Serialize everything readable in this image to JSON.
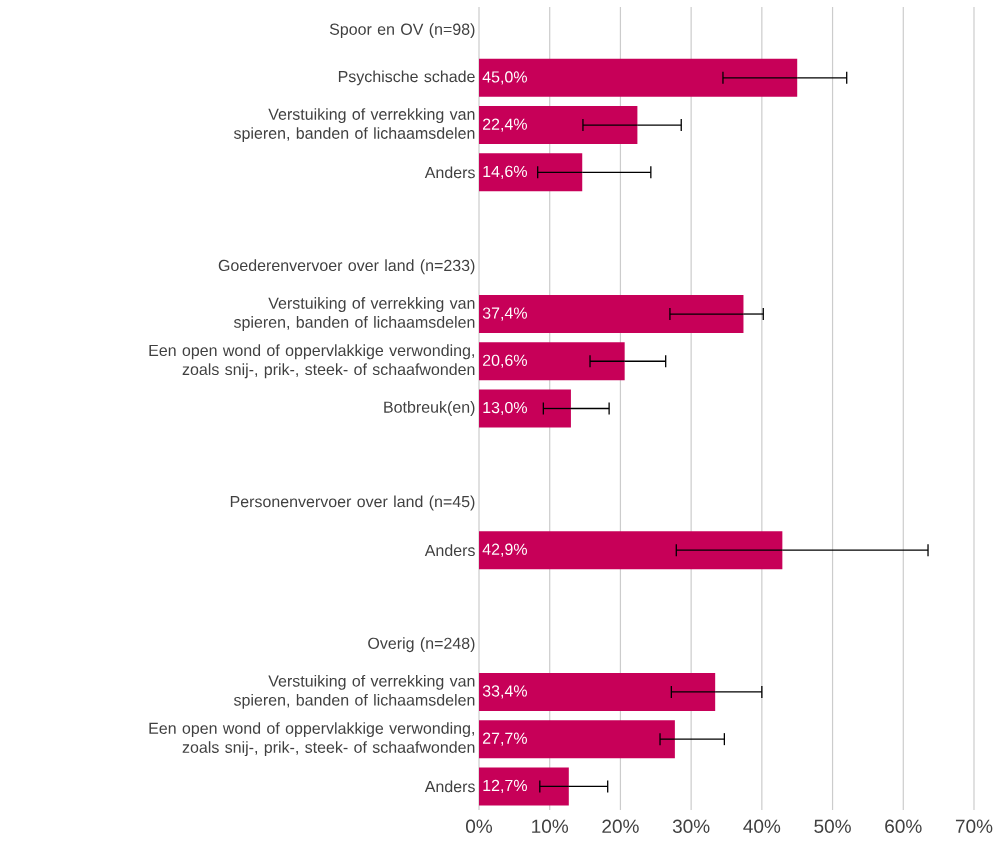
{
  "chart_data": {
    "type": "bar",
    "orientation": "horizontal",
    "categories": [
      "Spoor en OV (n=98)",
      "Psychische schade",
      "Verstuiking of verrekking van spieren, banden of lichaamsdelen",
      "Anders",
      null,
      "Goederenvervoer over land (n=233)",
      "Verstuiking of verrekking van spieren, banden of lichaamsdelen",
      "Een open wond of oppervlakkige verwonding, zoals snij-, prik-, steek- of schaafwonden",
      "Botbreuk(en)",
      null,
      "Personenvervoer over land (n=45)",
      "Anders",
      null,
      "Overig (n=248)",
      "Verstuiking of verrekking van spieren, banden of lichaamsdelen",
      "Een open wond of oppervlakkige verwonding, zoals snij-, prik-, steek- of schaafwonden",
      "Anders"
    ],
    "values": [
      null,
      45.0,
      22.4,
      14.6,
      null,
      null,
      37.4,
      20.6,
      13.0,
      null,
      null,
      42.9,
      null,
      null,
      33.4,
      27.7,
      12.7
    ],
    "value_labels": [
      null,
      "45,0%",
      "22,4%",
      "14,6%",
      null,
      null,
      "37,4%",
      "20,6%",
      "13,0%",
      null,
      null,
      "42,9%",
      null,
      null,
      "33,4%",
      "27,7%",
      "12,7%"
    ],
    "errors": [
      null,
      [
        34.5,
        52.0
      ],
      [
        14.7,
        28.6
      ],
      [
        8.3,
        24.3
      ],
      null,
      null,
      [
        27.0,
        40.2
      ],
      [
        15.7,
        26.4
      ],
      [
        9.1,
        18.4
      ],
      null,
      null,
      [
        27.9,
        63.5
      ],
      null,
      null,
      [
        27.2,
        40.0
      ],
      [
        25.6,
        34.7
      ],
      [
        8.6,
        18.2
      ]
    ],
    "color": "#c70058",
    "xlim": [
      0,
      70
    ],
    "xticks": [
      {
        "value": 0,
        "label": "0%"
      },
      {
        "value": 10,
        "label": "10%"
      },
      {
        "value": 20,
        "label": "20%"
      },
      {
        "value": 30,
        "label": "30%"
      },
      {
        "value": 40,
        "label": "40%"
      },
      {
        "value": 50,
        "label": "50%"
      },
      {
        "value": 60,
        "label": "60%"
      },
      {
        "value": 70,
        "label": "70%"
      }
    ],
    "grid": "x"
  }
}
